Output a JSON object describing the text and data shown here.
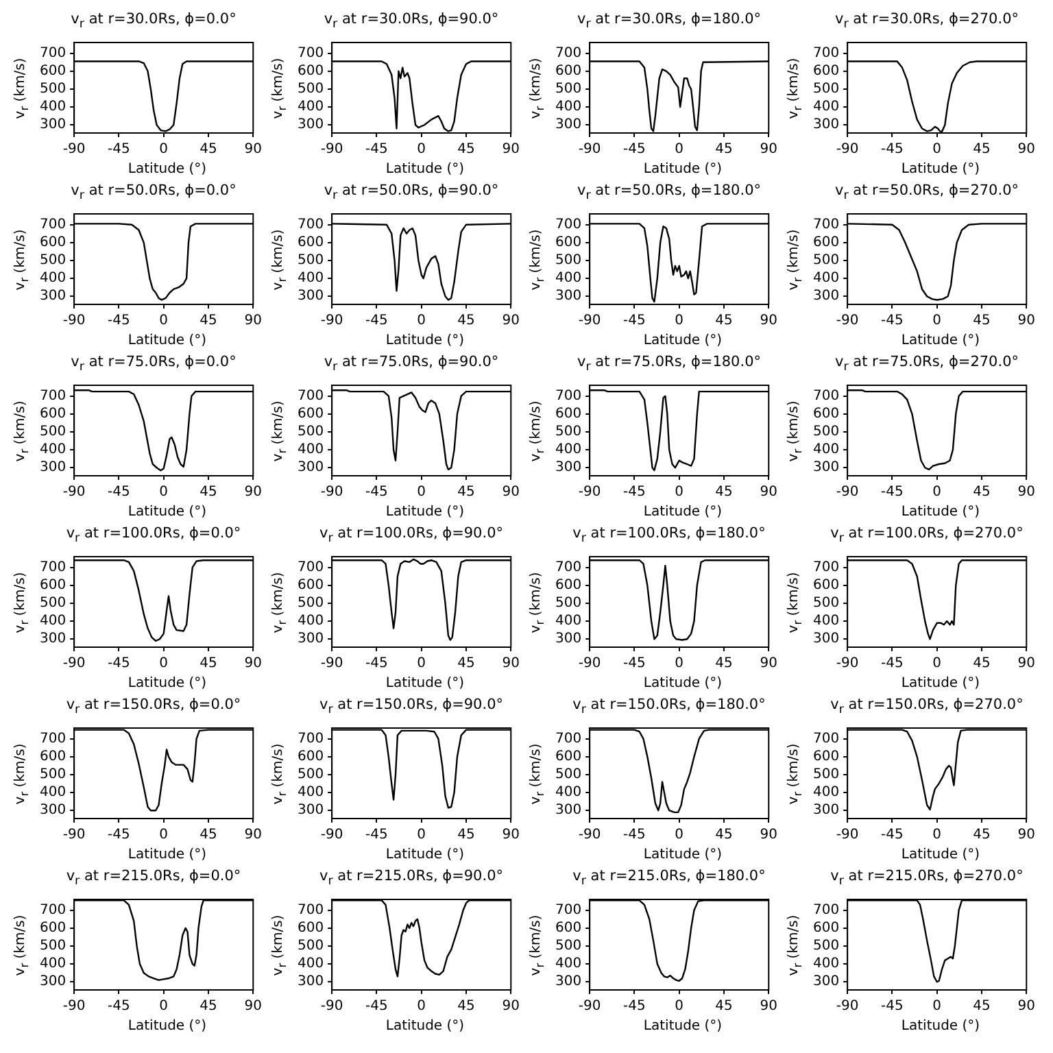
{
  "chart_data": [
    {
      "type": "line",
      "title": "v$_{r}$ at r=30.0Rs, ϕ=0.0°",
      "xlabel": "Latitude (°)",
      "ylabel": "v$_{r}$ (km/s)",
      "color": "#000000",
      "xlim": [
        -90,
        90
      ],
      "xticks": [
        -90,
        -45,
        0,
        45,
        90
      ],
      "ylim": [
        255,
        760
      ],
      "yticks": [
        300,
        400,
        500,
        600,
        700
      ],
      "x": [
        -90,
        -25,
        -20,
        -16,
        -13,
        -10,
        -7,
        -3,
        2,
        6,
        10,
        13,
        16,
        19,
        23,
        90
      ],
      "values": [
        655,
        655,
        645,
        600,
        500,
        380,
        300,
        270,
        265,
        275,
        300,
        420,
        560,
        640,
        655,
        655
      ]
    },
    {
      "type": "line",
      "title": "v$_{r}$ at r=30.0Rs, ϕ=90.0°",
      "xlabel": "Latitude (°)",
      "ylabel": "v$_{r}$ (km/s)",
      "color": "#000000",
      "xlim": [
        -90,
        90
      ],
      "xticks": [
        -90,
        -45,
        0,
        45,
        90
      ],
      "ylim": [
        255,
        760
      ],
      "yticks": [
        300,
        400,
        500,
        600,
        700
      ],
      "x": [
        -90,
        -40,
        -35,
        -30,
        -27,
        -25,
        -23,
        -21,
        -19,
        -17,
        -14,
        -12,
        -9,
        -6,
        -3,
        3,
        10,
        17,
        20,
        23,
        27,
        30,
        33,
        36,
        40,
        45,
        50,
        90
      ],
      "values": [
        655,
        655,
        640,
        580,
        450,
        280,
        600,
        560,
        620,
        570,
        590,
        560,
        420,
        300,
        285,
        300,
        330,
        350,
        320,
        280,
        265,
        270,
        320,
        450,
        580,
        640,
        655,
        655
      ]
    },
    {
      "type": "line",
      "title": "v$_{r}$ at r=30.0Rs, ϕ=180.0°",
      "xlabel": "Latitude (°)",
      "ylabel": "v$_{r}$ (km/s)",
      "color": "#000000",
      "xlim": [
        -90,
        90
      ],
      "xticks": [
        -90,
        -45,
        0,
        45,
        90
      ],
      "ylim": [
        255,
        760
      ],
      "yticks": [
        300,
        400,
        500,
        600,
        700
      ],
      "x": [
        -90,
        -40,
        -35,
        -32,
        -30,
        -28,
        -26,
        -24,
        -20,
        -17,
        -13,
        -9,
        -5,
        -1,
        1,
        3,
        5,
        8,
        10,
        12,
        14,
        16,
        18,
        20,
        22,
        24,
        90
      ],
      "values": [
        655,
        655,
        620,
        500,
        380,
        280,
        265,
        350,
        560,
        610,
        600,
        580,
        540,
        510,
        400,
        480,
        560,
        560,
        520,
        500,
        400,
        290,
        270,
        400,
        600,
        650,
        655
      ]
    },
    {
      "type": "line",
      "title": "v$_{r}$ at r=30.0Rs, ϕ=270.0°",
      "xlabel": "Latitude (°)",
      "ylabel": "v$_{r}$ (km/s)",
      "color": "#000000",
      "xlim": [
        -90,
        90
      ],
      "xticks": [
        -90,
        -45,
        0,
        45,
        90
      ],
      "ylim": [
        255,
        760
      ],
      "yticks": [
        300,
        400,
        500,
        600,
        700
      ],
      "x": [
        -90,
        -40,
        -35,
        -30,
        -25,
        -20,
        -15,
        -10,
        -6,
        -2,
        1,
        3,
        5,
        8,
        11,
        15,
        20,
        26,
        33,
        40,
        90
      ],
      "values": [
        655,
        655,
        620,
        550,
        430,
        330,
        280,
        265,
        270,
        290,
        280,
        265,
        262,
        300,
        420,
        530,
        590,
        630,
        650,
        655,
        655
      ]
    },
    {
      "type": "line",
      "title": "v$_{r}$ at r=50.0Rs, ϕ=0.0°",
      "xlabel": "Latitude (°)",
      "ylabel": "v$_{r}$ (km/s)",
      "color": "#000000",
      "xlim": [
        -90,
        90
      ],
      "xticks": [
        -90,
        -45,
        0,
        45,
        90
      ],
      "ylim": [
        255,
        760
      ],
      "yticks": [
        300,
        400,
        500,
        600,
        700
      ],
      "x": [
        -90,
        -45,
        -32,
        -25,
        -20,
        -17,
        -14,
        -11,
        -8,
        -5,
        -2,
        2,
        6,
        10,
        15,
        20,
        23,
        25,
        27,
        32,
        90
      ],
      "values": [
        705,
        705,
        700,
        670,
        600,
        500,
        400,
        340,
        320,
        290,
        280,
        290,
        320,
        340,
        350,
        370,
        400,
        600,
        690,
        705,
        705
      ]
    },
    {
      "type": "line",
      "title": "v$_{r}$ at r=50.0Rs, ϕ=90.0°",
      "xlabel": "Latitude (°)",
      "ylabel": "v$_{r}$ (km/s)",
      "color": "#000000",
      "xlim": [
        -90,
        90
      ],
      "xticks": [
        -90,
        -45,
        0,
        45,
        90
      ],
      "ylim": [
        255,
        760
      ],
      "yticks": [
        300,
        400,
        500,
        600,
        700
      ],
      "x": [
        -90,
        -35,
        -30,
        -27,
        -25,
        -23,
        -21,
        -18,
        -15,
        -12,
        -9,
        -6,
        -3,
        0,
        2,
        5,
        10,
        14,
        17,
        20,
        24,
        27,
        30,
        33,
        37,
        40,
        45,
        90
      ],
      "values": [
        705,
        700,
        650,
        500,
        330,
        450,
        640,
        680,
        650,
        670,
        680,
        640,
        500,
        420,
        400,
        460,
        510,
        525,
        480,
        370,
        300,
        280,
        290,
        380,
        550,
        660,
        700,
        705
      ]
    },
    {
      "type": "line",
      "title": "v$_{r}$ at r=50.0Rs, ϕ=180.0°",
      "xlabel": "Latitude (°)",
      "ylabel": "v$_{r}$ (km/s)",
      "color": "#000000",
      "xlim": [
        -90,
        90
      ],
      "xticks": [
        -90,
        -45,
        0,
        45,
        90
      ],
      "ylim": [
        255,
        760
      ],
      "yticks": [
        300,
        400,
        500,
        600,
        700
      ],
      "x": [
        -90,
        -40,
        -35,
        -32,
        -29,
        -27,
        -25,
        -22,
        -19,
        -16,
        -13,
        -10,
        -8,
        -6,
        -4,
        -2,
        0,
        2,
        5,
        7,
        9,
        11,
        13,
        15,
        17,
        20,
        23,
        28,
        90
      ],
      "values": [
        705,
        705,
        680,
        580,
        400,
        290,
        270,
        400,
        600,
        690,
        680,
        620,
        500,
        420,
        470,
        440,
        470,
        410,
        420,
        440,
        400,
        440,
        380,
        310,
        320,
        500,
        690,
        705,
        705
      ]
    },
    {
      "type": "line",
      "title": "v$_{r}$ at r=50.0Rs, ϕ=270.0°",
      "xlabel": "Latitude (°)",
      "ylabel": "v$_{r}$ (km/s)",
      "color": "#000000",
      "xlim": [
        -90,
        90
      ],
      "xticks": [
        -90,
        -45,
        0,
        45,
        90
      ],
      "ylim": [
        255,
        760
      ],
      "yticks": [
        300,
        400,
        500,
        600,
        700
      ],
      "x": [
        -90,
        -45,
        -38,
        -32,
        -26,
        -20,
        -15,
        -10,
        -5,
        0,
        6,
        11,
        14,
        17,
        20,
        25,
        32,
        45,
        90
      ],
      "values": [
        705,
        700,
        670,
        600,
        520,
        440,
        340,
        300,
        285,
        280,
        285,
        300,
        360,
        500,
        600,
        670,
        700,
        705,
        705
      ]
    },
    {
      "type": "line",
      "title": "v$_{r}$ at r=75.0Rs, ϕ=0.0°",
      "xlabel": "Latitude (°)",
      "ylabel": "v$_{r}$ (km/s)",
      "color": "#000000",
      "xlim": [
        -90,
        90
      ],
      "xticks": [
        -90,
        -45,
        0,
        45,
        90
      ],
      "ylim": [
        255,
        760
      ],
      "yticks": [
        300,
        400,
        500,
        600,
        700
      ],
      "x": [
        -90,
        -75,
        -72,
        -35,
        -30,
        -25,
        -20,
        -17,
        -14,
        -11,
        -7,
        -3,
        0,
        3,
        6,
        8,
        11,
        14,
        17,
        20,
        23,
        26,
        28,
        32,
        90
      ],
      "values": [
        732,
        732,
        725,
        725,
        710,
        650,
        560,
        470,
        380,
        320,
        300,
        285,
        295,
        370,
        460,
        470,
        430,
        360,
        320,
        305,
        400,
        600,
        700,
        725,
        725
      ]
    },
    {
      "type": "line",
      "title": "v$_{r}$ at r=75.0Rs, ϕ=90.0°",
      "xlabel": "Latitude (°)",
      "ylabel": "v$_{r}$ (km/s)",
      "color": "#000000",
      "xlim": [
        -90,
        90
      ],
      "xticks": [
        -90,
        -45,
        0,
        45,
        90
      ],
      "ylim": [
        255,
        760
      ],
      "yticks": [
        300,
        400,
        500,
        600,
        700
      ],
      "x": [
        -90,
        -75,
        -72,
        -38,
        -33,
        -30,
        -28,
        -26,
        -24,
        -22,
        -18,
        -14,
        -10,
        -6,
        -2,
        1,
        4,
        7,
        10,
        14,
        18,
        22,
        25,
        27,
        30,
        33,
        36,
        40,
        45,
        90
      ],
      "values": [
        732,
        732,
        725,
        725,
        700,
        580,
        400,
        340,
        500,
        690,
        700,
        710,
        720,
        690,
        640,
        620,
        610,
        660,
        675,
        660,
        600,
        450,
        320,
        290,
        300,
        400,
        600,
        700,
        725,
        725
      ]
    },
    {
      "type": "line",
      "title": "v$_{r}$ at r=75.0Rs, ϕ=180.0°",
      "xlabel": "Latitude (°)",
      "ylabel": "v$_{r}$ (km/s)",
      "color": "#000000",
      "xlim": [
        -90,
        90
      ],
      "xticks": [
        -90,
        -45,
        0,
        45,
        90
      ],
      "ylim": [
        255,
        760
      ],
      "yticks": [
        300,
        400,
        500,
        600,
        700
      ],
      "x": [
        -90,
        -75,
        -72,
        -40,
        -35,
        -32,
        -29,
        -27,
        -25,
        -22,
        -19,
        -16,
        -14,
        -12,
        -10,
        -7,
        -4,
        -2,
        0,
        3,
        8,
        12,
        15,
        18,
        20,
        90
      ],
      "values": [
        732,
        732,
        725,
        725,
        680,
        550,
        400,
        300,
        285,
        350,
        500,
        690,
        700,
        600,
        400,
        320,
        300,
        320,
        340,
        330,
        320,
        310,
        350,
        600,
        725,
        725
      ]
    },
    {
      "type": "line",
      "title": "v$_{r}$ at r=75.0Rs, ϕ=270.0°",
      "xlabel": "Latitude (°)",
      "ylabel": "v$_{r}$ (km/s)",
      "color": "#000000",
      "xlim": [
        -90,
        90
      ],
      "xticks": [
        -90,
        -45,
        0,
        45,
        90
      ],
      "ylim": [
        255,
        760
      ],
      "yticks": [
        300,
        400,
        500,
        600,
        700
      ],
      "x": [
        -90,
        -75,
        -72,
        -40,
        -35,
        -30,
        -25,
        -20,
        -16,
        -12,
        -8,
        -4,
        2,
        8,
        13,
        16,
        19,
        22,
        26,
        90
      ],
      "values": [
        732,
        732,
        725,
        725,
        710,
        680,
        600,
        450,
        340,
        300,
        290,
        310,
        320,
        325,
        340,
        400,
        600,
        700,
        725,
        725
      ]
    },
    {
      "type": "line",
      "title": "v$_{r}$ at r=100.0Rs, ϕ=0.0°",
      "xlabel": "Latitude (°)",
      "ylabel": "v$_{r}$ (km/s)",
      "color": "#000000",
      "xlim": [
        -90,
        90
      ],
      "xticks": [
        -90,
        -45,
        0,
        45,
        90
      ],
      "ylim": [
        255,
        760
      ],
      "yticks": [
        300,
        400,
        500,
        600,
        700
      ],
      "x": [
        -90,
        -40,
        -35,
        -30,
        -25,
        -20,
        -16,
        -12,
        -8,
        -4,
        0,
        3,
        5,
        7,
        10,
        13,
        20,
        23,
        26,
        29,
        33,
        40,
        90
      ],
      "values": [
        740,
        740,
        730,
        680,
        570,
        440,
        360,
        310,
        290,
        300,
        330,
        460,
        540,
        460,
        380,
        350,
        345,
        380,
        550,
        700,
        735,
        740,
        740
      ]
    },
    {
      "type": "line",
      "title": "v$_{r}$ at r=100.0Rs, ϕ=90.0°",
      "xlabel": "Latitude (°)",
      "ylabel": "v$_{r}$ (km/s)",
      "color": "#000000",
      "xlim": [
        -90,
        90
      ],
      "xticks": [
        -90,
        -45,
        0,
        45,
        90
      ],
      "ylim": [
        255,
        760
      ],
      "yticks": [
        300,
        400,
        500,
        600,
        700
      ],
      "x": [
        -90,
        -40,
        -36,
        -33,
        -30,
        -28,
        -26,
        -24,
        -21,
        -17,
        -12,
        -8,
        -4,
        -1,
        2,
        6,
        10,
        15,
        20,
        24,
        27,
        29,
        31,
        34,
        37,
        40,
        45,
        90
      ],
      "values": [
        740,
        740,
        720,
        600,
        450,
        360,
        450,
        650,
        720,
        735,
        730,
        745,
        735,
        720,
        720,
        735,
        740,
        730,
        680,
        500,
        320,
        295,
        310,
        450,
        650,
        730,
        740,
        740
      ]
    },
    {
      "type": "line",
      "title": "v$_{r}$ at r=100.0Rs, ϕ=180.0°",
      "xlabel": "Latitude (°)",
      "ylabel": "v$_{r}$ (km/s)",
      "color": "#000000",
      "xlim": [
        -90,
        90
      ],
      "xticks": [
        -90,
        -45,
        0,
        45,
        90
      ],
      "ylim": [
        255,
        760
      ],
      "yticks": [
        300,
        400,
        500,
        600,
        700
      ],
      "x": [
        -90,
        -40,
        -36,
        -32,
        -28,
        -25,
        -22,
        -19,
        -16,
        -14,
        -12,
        -9,
        -6,
        -3,
        3,
        8,
        12,
        15,
        18,
        22,
        26,
        90
      ],
      "values": [
        740,
        740,
        720,
        600,
        400,
        300,
        320,
        450,
        600,
        710,
        600,
        400,
        320,
        300,
        295,
        300,
        330,
        400,
        600,
        730,
        740,
        740
      ]
    },
    {
      "type": "line",
      "title": "v$_{r}$ at r=100.0Rs, ϕ=270.0°",
      "xlabel": "Latitude (°)",
      "ylabel": "v$_{r}$ (km/s)",
      "color": "#000000",
      "xlim": [
        -90,
        90
      ],
      "xticks": [
        -90,
        -45,
        0,
        45,
        90
      ],
      "ylim": [
        255,
        760
      ],
      "yticks": [
        300,
        400,
        500,
        600,
        700
      ],
      "x": [
        -90,
        -30,
        -25,
        -20,
        -16,
        -12,
        -9,
        -7,
        -4,
        0,
        4,
        7,
        10,
        13,
        15,
        17,
        19,
        22,
        25,
        90
      ],
      "values": [
        740,
        740,
        720,
        650,
        520,
        400,
        330,
        300,
        350,
        390,
        390,
        380,
        400,
        380,
        400,
        380,
        600,
        720,
        740,
        740
      ]
    },
    {
      "type": "line",
      "title": "v$_{r}$ at r=150.0Rs, ϕ=0.0°",
      "xlabel": "Latitude (°)",
      "ylabel": "v$_{r}$ (km/s)",
      "color": "#000000",
      "xlim": [
        -90,
        90
      ],
      "xticks": [
        -90,
        -45,
        0,
        45,
        90
      ],
      "ylim": [
        255,
        760
      ],
      "yticks": [
        300,
        400,
        500,
        600,
        700
      ],
      "x": [
        -90,
        -40,
        -35,
        -30,
        -25,
        -20,
        -16,
        -13,
        -8,
        -5,
        -2,
        1,
        3,
        5,
        8,
        12,
        16,
        20,
        24,
        27,
        29,
        31,
        33,
        36,
        45,
        90
      ],
      "values": [
        750,
        750,
        730,
        670,
        560,
        430,
        320,
        300,
        300,
        330,
        450,
        550,
        640,
        600,
        570,
        555,
        555,
        555,
        530,
        470,
        460,
        560,
        700,
        745,
        750,
        750
      ]
    },
    {
      "type": "line",
      "title": "v$_{r}$ at r=150.0Rs, ϕ=90.0°",
      "xlabel": "Latitude (°)",
      "ylabel": "v$_{r}$ (km/s)",
      "color": "#000000",
      "xlim": [
        -90,
        90
      ],
      "xticks": [
        -90,
        -45,
        0,
        45,
        90
      ],
      "ylim": [
        255,
        760
      ],
      "yticks": [
        300,
        400,
        500,
        600,
        700
      ],
      "x": [
        -90,
        -40,
        -36,
        -33,
        -30,
        -28,
        -26,
        -24,
        -20,
        -5,
        5,
        13,
        17,
        21,
        24,
        27,
        30,
        33,
        36,
        40,
        45,
        90
      ],
      "values": [
        750,
        750,
        720,
        600,
        450,
        360,
        500,
        720,
        745,
        745,
        745,
        740,
        700,
        550,
        380,
        315,
        320,
        400,
        600,
        720,
        750,
        750
      ]
    },
    {
      "type": "line",
      "title": "v$_{r}$ at r=150.0Rs, ϕ=180.0°",
      "xlabel": "Latitude (°)",
      "ylabel": "v$_{r}$ (km/s)",
      "color": "#000000",
      "xlim": [
        -90,
        90
      ],
      "xticks": [
        -90,
        -45,
        0,
        45,
        90
      ],
      "ylim": [
        255,
        760
      ],
      "yticks": [
        300,
        400,
        500,
        600,
        700
      ],
      "x": [
        -90,
        -45,
        -40,
        -36,
        -32,
        -28,
        -24,
        -21,
        -19,
        -17,
        -15,
        -13,
        -10,
        -5,
        -1,
        2,
        5,
        8,
        11,
        15,
        20,
        25,
        30,
        90
      ],
      "values": [
        750,
        750,
        740,
        700,
        600,
        480,
        340,
        300,
        340,
        460,
        400,
        340,
        300,
        290,
        290,
        330,
        420,
        460,
        510,
        600,
        700,
        745,
        750,
        750
      ]
    },
    {
      "type": "line",
      "title": "v$_{r}$ at r=150.0Rs, ϕ=270.0°",
      "xlabel": "Latitude (°)",
      "ylabel": "v$_{r}$ (km/s)",
      "color": "#000000",
      "xlim": [
        -90,
        90
      ],
      "xticks": [
        -90,
        -45,
        0,
        45,
        90
      ],
      "ylim": [
        255,
        760
      ],
      "yticks": [
        300,
        400,
        500,
        600,
        700
      ],
      "x": [
        -90,
        -35,
        -30,
        -25,
        -20,
        -15,
        -10,
        -7,
        -4,
        -2,
        2,
        6,
        9,
        12,
        14,
        16,
        17,
        19,
        21,
        24,
        30,
        90
      ],
      "values": [
        750,
        750,
        740,
        690,
        600,
        470,
        330,
        305,
        380,
        420,
        450,
        490,
        530,
        550,
        540,
        470,
        440,
        560,
        680,
        745,
        750,
        750
      ]
    },
    {
      "type": "line",
      "title": "v$_{r}$ at r=215.0Rs, ϕ=0.0°",
      "xlabel": "Latitude (°)",
      "ylabel": "v$_{r}$ (km/s)",
      "color": "#000000",
      "xlim": [
        -90,
        90
      ],
      "xticks": [
        -90,
        -45,
        0,
        45,
        90
      ],
      "ylim": [
        255,
        760
      ],
      "yticks": [
        300,
        400,
        500,
        600,
        700
      ],
      "x": [
        -90,
        -40,
        -35,
        -30,
        -27,
        -24,
        -20,
        -15,
        -10,
        -5,
        0,
        5,
        10,
        13,
        16,
        19,
        22,
        24,
        26,
        29,
        31,
        33,
        35,
        38,
        40,
        90
      ],
      "values": [
        755,
        755,
        730,
        640,
        500,
        400,
        350,
        330,
        320,
        310,
        315,
        320,
        330,
        370,
        450,
        560,
        600,
        580,
        450,
        400,
        390,
        450,
        600,
        720,
        755,
        755
      ]
    },
    {
      "type": "line",
      "title": "v$_{r}$ at r=215.0Rs, ϕ=90.0°",
      "xlabel": "Latitude (°)",
      "ylabel": "v$_{r}$ (km/s)",
      "color": "#000000",
      "xlim": [
        -90,
        90
      ],
      "xticks": [
        -90,
        -45,
        0,
        45,
        90
      ],
      "ylim": [
        255,
        760
      ],
      "yticks": [
        300,
        400,
        500,
        600,
        700
      ],
      "x": [
        -90,
        -40,
        -36,
        -32,
        -29,
        -26,
        -24,
        -22,
        -20,
        -18,
        -16,
        -14,
        -12,
        -10,
        -8,
        -6,
        -4,
        -2,
        0,
        3,
        6,
        10,
        14,
        18,
        22,
        26,
        30,
        34,
        38,
        42,
        45,
        48,
        90
      ],
      "values": [
        755,
        755,
        730,
        600,
        480,
        370,
        330,
        430,
        560,
        590,
        580,
        620,
        600,
        630,
        610,
        640,
        650,
        600,
        520,
        420,
        380,
        360,
        345,
        340,
        360,
        440,
        480,
        550,
        620,
        700,
        740,
        755,
        755
      ]
    },
    {
      "type": "line",
      "title": "v$_{r}$ at r=215.0Rs, ϕ=180.0°",
      "xlabel": "Latitude (°)",
      "ylabel": "v$_{r}$ (km/s)",
      "color": "#000000",
      "xlim": [
        -90,
        90
      ],
      "xticks": [
        -90,
        -45,
        0,
        45,
        90
      ],
      "ylim": [
        255,
        760
      ],
      "yticks": [
        300,
        400,
        500,
        600,
        700
      ],
      "x": [
        -90,
        -40,
        -35,
        -30,
        -26,
        -22,
        -18,
        -15,
        -12,
        -9,
        -6,
        -3,
        0,
        3,
        6,
        9,
        12,
        15,
        19,
        25,
        90
      ],
      "values": [
        755,
        755,
        730,
        650,
        530,
        400,
        350,
        330,
        325,
        335,
        320,
        310,
        305,
        320,
        370,
        470,
        600,
        700,
        750,
        755,
        755
      ]
    },
    {
      "type": "line",
      "title": "v$_{r}$ at r=215.0Rs, ϕ=270.0°",
      "xlabel": "Latitude (°)",
      "ylabel": "v$_{r}$ (km/s)",
      "color": "#000000",
      "xlim": [
        -90,
        90
      ],
      "xticks": [
        -90,
        -45,
        0,
        45,
        90
      ],
      "ylim": [
        255,
        760
      ],
      "yticks": [
        300,
        400,
        500,
        600,
        700
      ],
      "x": [
        -90,
        -20,
        -17,
        -14,
        -10,
        -6,
        -3,
        0,
        2,
        5,
        8,
        11,
        14,
        16,
        18,
        20,
        22,
        25,
        90
      ],
      "values": [
        755,
        755,
        730,
        650,
        530,
        420,
        330,
        300,
        305,
        370,
        420,
        430,
        440,
        430,
        500,
        600,
        700,
        755,
        755
      ]
    }
  ]
}
